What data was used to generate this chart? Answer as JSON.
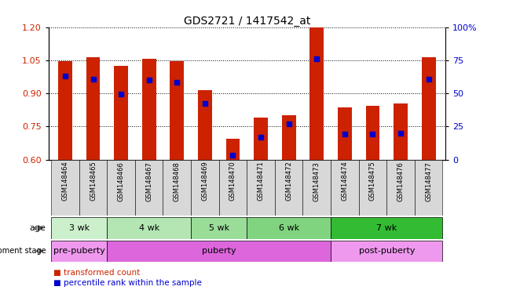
{
  "title": "GDS2721 / 1417542_at",
  "samples": [
    "GSM148464",
    "GSM148465",
    "GSM148466",
    "GSM148467",
    "GSM148468",
    "GSM148469",
    "GSM148470",
    "GSM148471",
    "GSM148472",
    "GSM148473",
    "GSM148474",
    "GSM148475",
    "GSM148476",
    "GSM148477"
  ],
  "bar_values": [
    1.045,
    1.065,
    1.025,
    1.055,
    1.045,
    0.915,
    0.695,
    0.79,
    0.8,
    1.205,
    0.835,
    0.845,
    0.855,
    1.065
  ],
  "percentile_values": [
    0.98,
    0.965,
    0.895,
    0.96,
    0.95,
    0.855,
    0.62,
    0.7,
    0.76,
    1.055,
    0.715,
    0.715,
    0.72,
    0.965
  ],
  "ylim_left": [
    0.6,
    1.2
  ],
  "ylim_right": [
    0,
    100
  ],
  "yticks_left": [
    0.6,
    0.75,
    0.9,
    1.05,
    1.2
  ],
  "yticks_right": [
    0,
    25,
    50,
    75,
    100
  ],
  "bar_color": "#cc2200",
  "percentile_color": "#0000cc",
  "age_groups": [
    {
      "label": "3 wk",
      "start": 0,
      "end": 1,
      "color": "#d6f5d6"
    },
    {
      "label": "4 wk",
      "start": 2,
      "end": 4,
      "color": "#c2eec2"
    },
    {
      "label": "5 wk",
      "start": 5,
      "end": 6,
      "color": "#aae6aa"
    },
    {
      "label": "6 wk",
      "start": 7,
      "end": 9,
      "color": "#88dd88"
    },
    {
      "label": "7 wk",
      "start": 10,
      "end": 13,
      "color": "#44cc44"
    }
  ],
  "dev_groups": [
    {
      "label": "pre-puberty",
      "start": 0,
      "end": 1,
      "color": "#ee99ee"
    },
    {
      "label": "puberty",
      "start": 2,
      "end": 9,
      "color": "#dd77dd"
    },
    {
      "label": "post-puberty",
      "start": 10,
      "end": 13,
      "color": "#ee99ee"
    }
  ],
  "background_color": "#ffffff"
}
